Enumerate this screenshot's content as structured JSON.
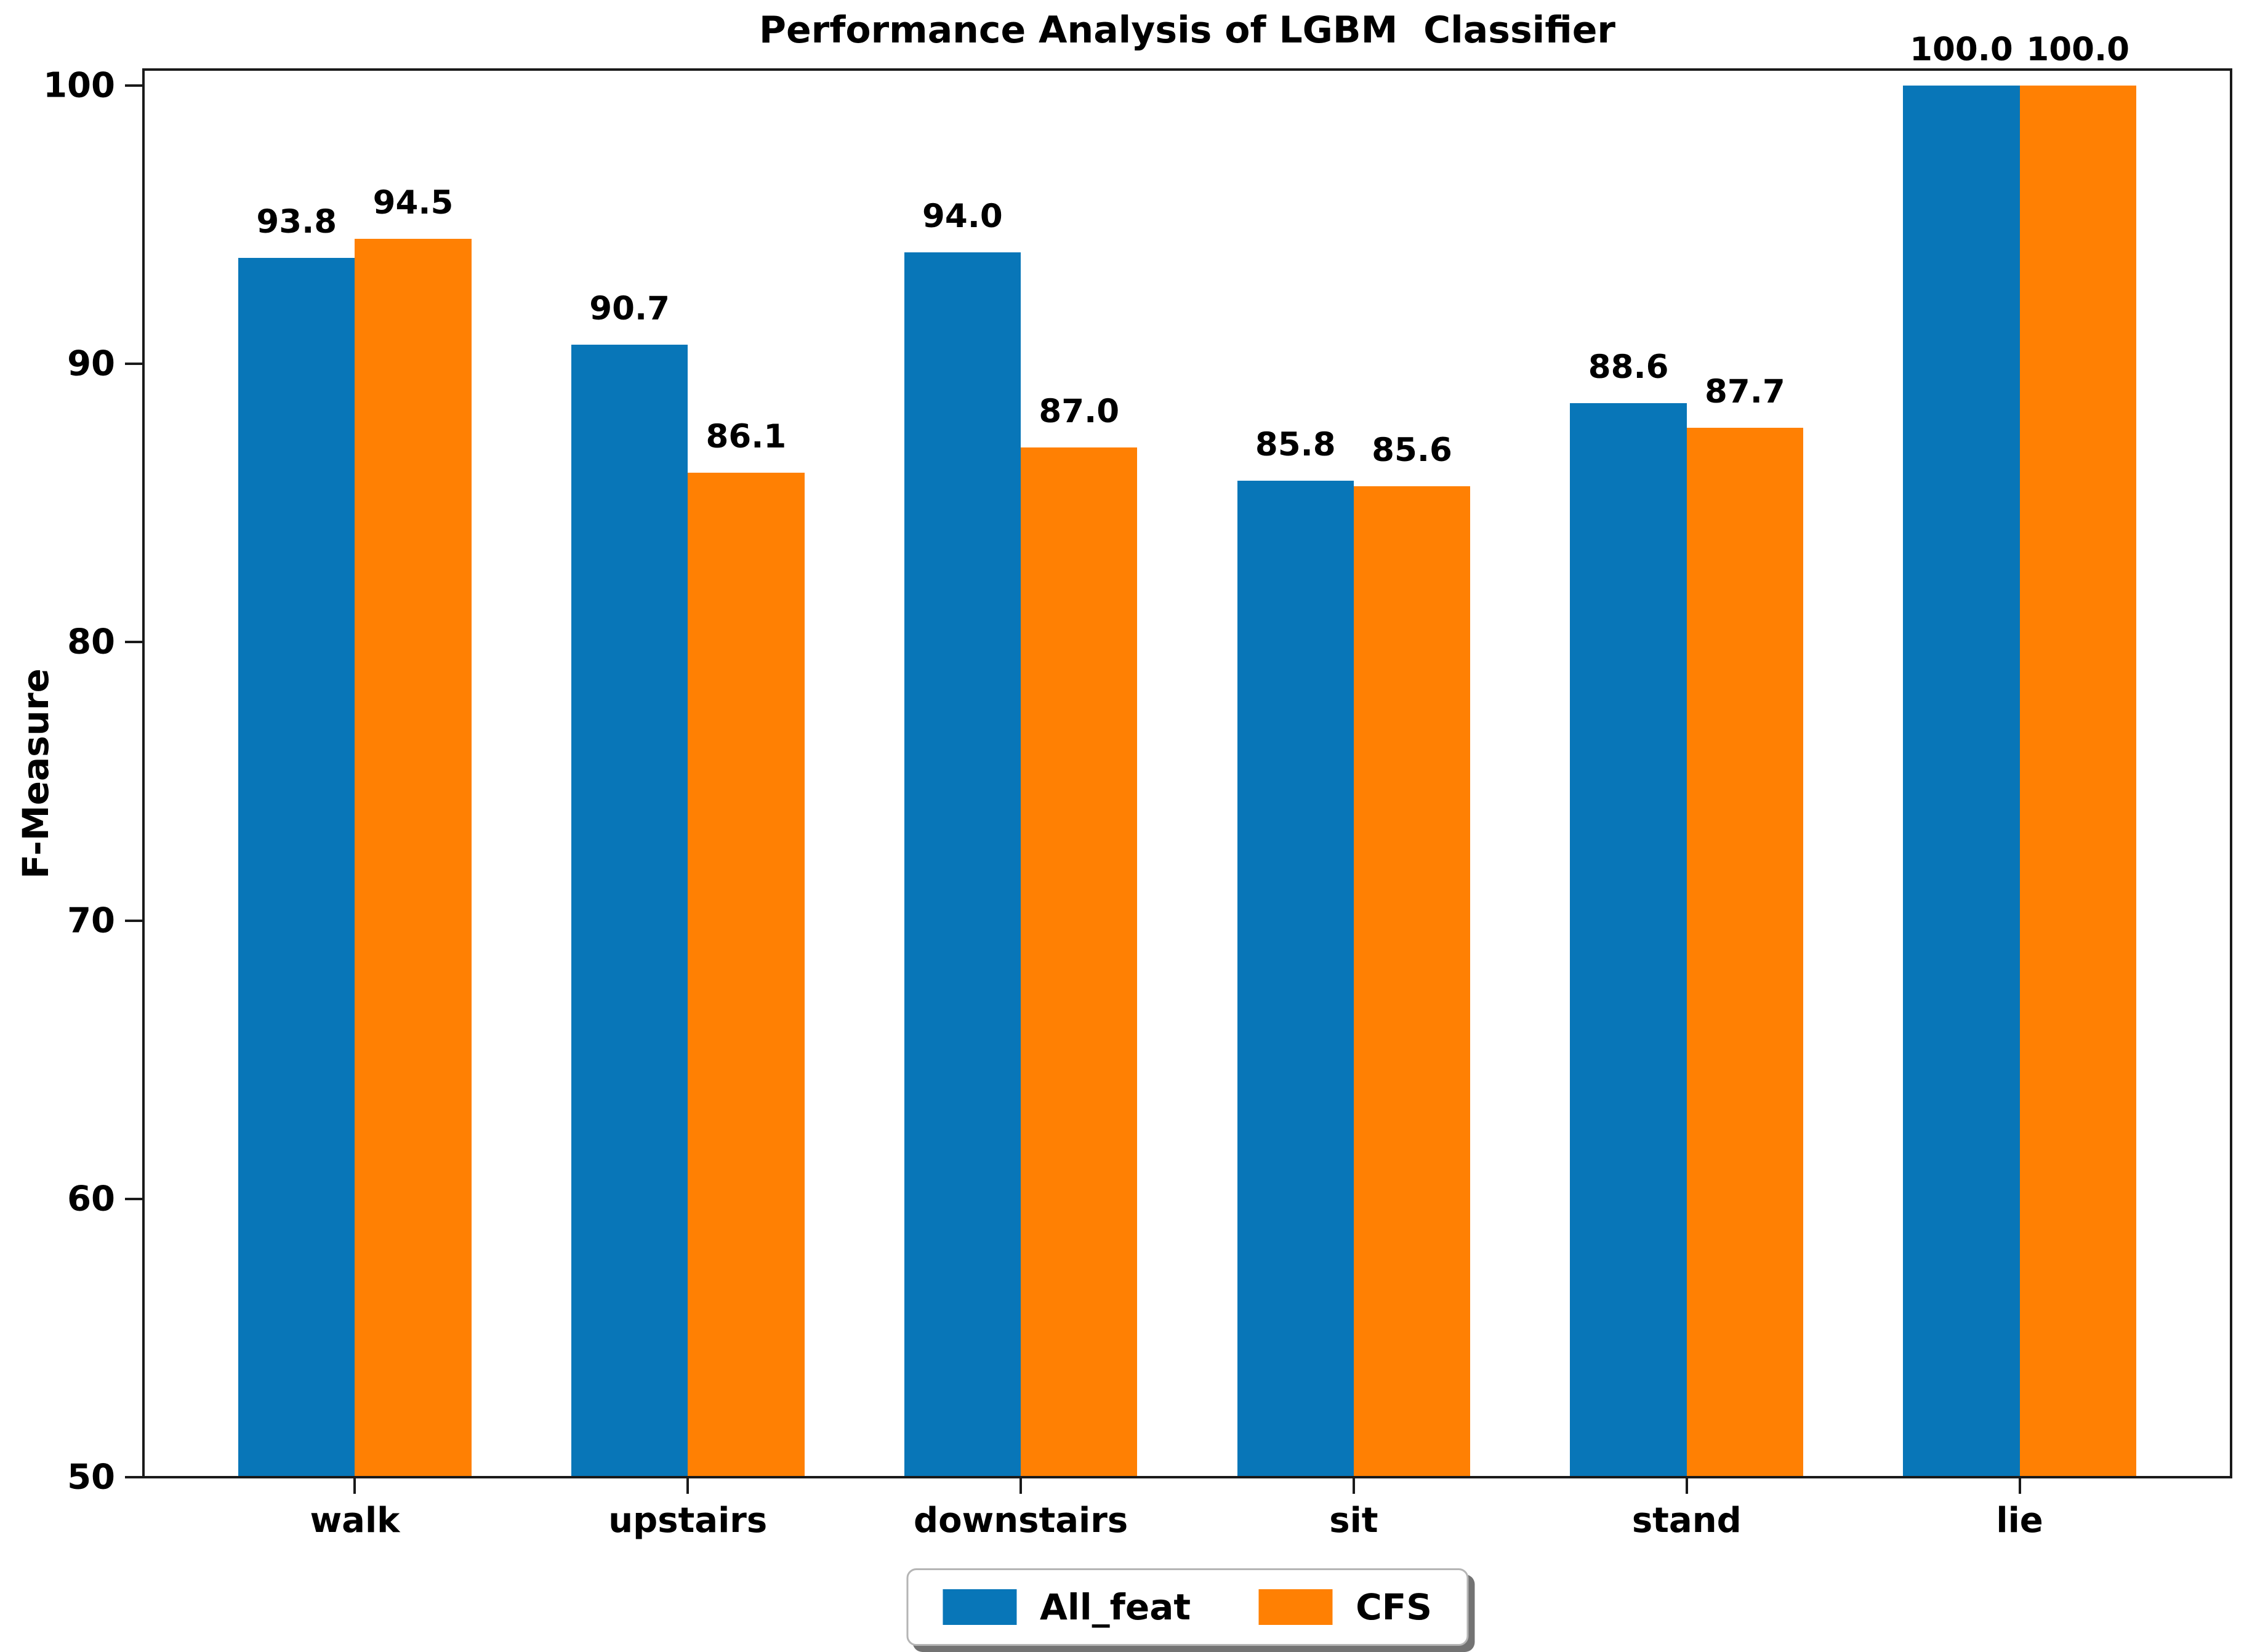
{
  "figure": {
    "title": "Performance Analysis of LGBM  Classifier",
    "ylabel": "F-Measure"
  },
  "chart_data": {
    "type": "bar",
    "title": "Performance Analysis of LGBM  Classifier",
    "xlabel": "",
    "ylabel": "F-Measure",
    "categories": [
      "walk",
      "upstairs",
      "downstairs",
      "sit",
      "stand",
      "lie"
    ],
    "series": [
      {
        "name": "All_feat",
        "color": "#0876b8",
        "values": [
          93.8,
          90.7,
          94.0,
          85.8,
          88.6,
          100.0
        ]
      },
      {
        "name": "CFS",
        "color": "#ff8003",
        "values": [
          94.5,
          86.1,
          87.0,
          85.6,
          87.7,
          100.0
        ]
      }
    ],
    "ylim": [
      50,
      100
    ],
    "yticks": [
      50,
      60,
      70,
      80,
      90,
      100
    ],
    "grid": false,
    "legend_position": "bottom-center",
    "bar_value_labels": true,
    "value_label_format": "0.1f"
  },
  "legend": {
    "items": [
      {
        "label": "All_feat",
        "color": "#0876b8"
      },
      {
        "label": "CFS",
        "color": "#ff8003"
      }
    ]
  }
}
